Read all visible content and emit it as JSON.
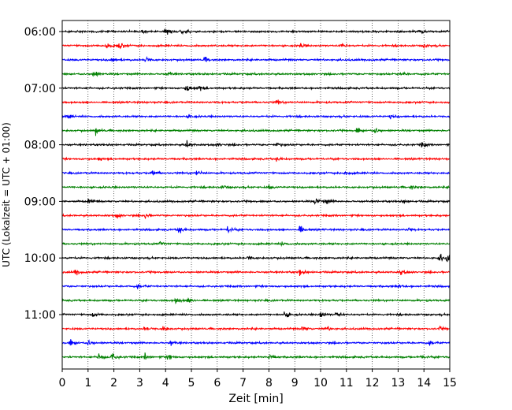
{
  "chart_data": {
    "type": "line",
    "title": "",
    "xlabel": "Zeit  [min]",
    "ylabel": "UTC (Lokalzeit = UTC + 01:00)",
    "xlim": [
      0,
      15
    ],
    "x_ticks": [
      "0",
      "1",
      "2",
      "3",
      "4",
      "5",
      "6",
      "7",
      "8",
      "9",
      "10",
      "11",
      "12",
      "13",
      "14",
      "15"
    ],
    "y_ticks": [
      {
        "label": "06:00",
        "row": 0
      },
      {
        "label": "07:00",
        "row": 4
      },
      {
        "label": "08:00",
        "row": 8
      },
      {
        "label": "09:00",
        "row": 12
      },
      {
        "label": "10:00",
        "row": 16
      },
      {
        "label": "11:00",
        "row": 20
      }
    ],
    "grid": "vertical-dotted",
    "interval_minutes": 15,
    "color_cycle": [
      "#000000",
      "#ff0000",
      "#0000ff",
      "#008000"
    ],
    "traces": [
      {
        "start": "06:00",
        "events": [
          {
            "t": 3.1,
            "a": 0.5
          },
          {
            "t": 4.0,
            "a": 0.9
          },
          {
            "t": 4.6,
            "a": 0.5
          },
          {
            "t": 13.8,
            "a": 0.4
          }
        ]
      },
      {
        "start": "06:15",
        "events": [
          {
            "t": 1.7,
            "a": 0.8
          },
          {
            "t": 2.2,
            "a": 0.7
          },
          {
            "t": 9.2,
            "a": 0.5
          },
          {
            "t": 10.8,
            "a": 0.4
          },
          {
            "t": 14.0,
            "a": 0.5
          }
        ]
      },
      {
        "start": "06:30",
        "events": [
          {
            "t": 1.9,
            "a": 0.5
          },
          {
            "t": 3.2,
            "a": 0.7
          },
          {
            "t": 5.5,
            "a": 0.6
          }
        ]
      },
      {
        "start": "06:45",
        "events": [
          {
            "t": 1.2,
            "a": 0.8
          },
          {
            "t": 4.1,
            "a": 0.4
          },
          {
            "t": 13.1,
            "a": 0.4
          }
        ]
      },
      {
        "start": "07:00",
        "events": [
          {
            "t": 4.8,
            "a": 0.9
          },
          {
            "t": 5.3,
            "a": 0.5
          }
        ]
      },
      {
        "start": "07:15",
        "events": [
          {
            "t": 8.3,
            "a": 0.4
          }
        ]
      },
      {
        "start": "07:30",
        "events": [
          {
            "t": 0.2,
            "a": 0.4
          },
          {
            "t": 4.9,
            "a": 0.4
          },
          {
            "t": 12.7,
            "a": 0.4
          }
        ]
      },
      {
        "start": "07:45",
        "events": [
          {
            "t": 1.3,
            "a": 0.6
          },
          {
            "t": 11.4,
            "a": 0.6
          },
          {
            "t": 12.1,
            "a": 0.5
          }
        ]
      },
      {
        "start": "08:00",
        "events": [
          {
            "t": 4.8,
            "a": 0.8
          },
          {
            "t": 6.0,
            "a": 0.4
          },
          {
            "t": 8.3,
            "a": 0.4
          },
          {
            "t": 13.9,
            "a": 0.5
          }
        ]
      },
      {
        "start": "08:15",
        "events": [
          {
            "t": 1.4,
            "a": 0.3
          },
          {
            "t": 8.3,
            "a": 0.3
          }
        ]
      },
      {
        "start": "08:30",
        "events": [
          {
            "t": 3.5,
            "a": 0.6
          },
          {
            "t": 5.2,
            "a": 0.6
          },
          {
            "t": 10.9,
            "a": 0.5
          }
        ]
      },
      {
        "start": "08:45",
        "events": [
          {
            "t": 6.2,
            "a": 0.4
          },
          {
            "t": 8.0,
            "a": 0.3
          },
          {
            "t": 13.5,
            "a": 0.3
          }
        ]
      },
      {
        "start": "09:00",
        "events": [
          {
            "t": 1.0,
            "a": 0.6
          },
          {
            "t": 9.8,
            "a": 0.8
          },
          {
            "t": 10.2,
            "a": 0.5
          },
          {
            "t": 13.2,
            "a": 0.4
          }
        ]
      },
      {
        "start": "09:15",
        "events": [
          {
            "t": 2.1,
            "a": 0.5
          },
          {
            "t": 3.2,
            "a": 0.6
          }
        ]
      },
      {
        "start": "09:30",
        "events": [
          {
            "t": 4.5,
            "a": 0.7
          },
          {
            "t": 6.4,
            "a": 0.7
          },
          {
            "t": 9.2,
            "a": 0.8
          },
          {
            "t": 13.4,
            "a": 0.3
          }
        ]
      },
      {
        "start": "09:45",
        "events": [
          {
            "t": 3.8,
            "a": 0.3
          },
          {
            "t": 8.5,
            "a": 0.3
          }
        ]
      },
      {
        "start": "10:00",
        "events": [
          {
            "t": 7.2,
            "a": 0.4
          },
          {
            "t": 14.6,
            "a": 0.9
          },
          {
            "t": 14.9,
            "a": 0.9
          }
        ]
      },
      {
        "start": "10:15",
        "events": [
          {
            "t": 0.5,
            "a": 0.6
          },
          {
            "t": 9.2,
            "a": 0.5
          },
          {
            "t": 13.1,
            "a": 0.6
          }
        ]
      },
      {
        "start": "10:30",
        "events": [
          {
            "t": 2.9,
            "a": 0.4
          },
          {
            "t": 13.0,
            "a": 0.3
          }
        ]
      },
      {
        "start": "10:45",
        "events": [
          {
            "t": 4.4,
            "a": 0.6
          },
          {
            "t": 4.9,
            "a": 0.6
          }
        ]
      },
      {
        "start": "11:00",
        "events": [
          {
            "t": 1.2,
            "a": 0.5
          },
          {
            "t": 8.6,
            "a": 0.7
          },
          {
            "t": 10.0,
            "a": 0.7
          },
          {
            "t": 10.6,
            "a": 0.6
          }
        ]
      },
      {
        "start": "11:15",
        "events": [
          {
            "t": 3.2,
            "a": 0.6
          },
          {
            "t": 3.9,
            "a": 0.6
          },
          {
            "t": 9.3,
            "a": 0.6
          },
          {
            "t": 10.2,
            "a": 0.6
          },
          {
            "t": 14.6,
            "a": 0.3
          }
        ]
      },
      {
        "start": "11:30",
        "events": [
          {
            "t": 0.3,
            "a": 0.7
          },
          {
            "t": 1.0,
            "a": 0.5
          },
          {
            "t": 4.2,
            "a": 0.5
          },
          {
            "t": 14.2,
            "a": 0.4
          }
        ]
      },
      {
        "start": "11:45",
        "events": [
          {
            "t": 1.4,
            "a": 1.0
          },
          {
            "t": 1.9,
            "a": 0.9
          },
          {
            "t": 3.2,
            "a": 0.6
          },
          {
            "t": 4.1,
            "a": 0.6
          },
          {
            "t": 8.0,
            "a": 0.6
          },
          {
            "t": 13.9,
            "a": 0.4
          }
        ]
      }
    ]
  }
}
